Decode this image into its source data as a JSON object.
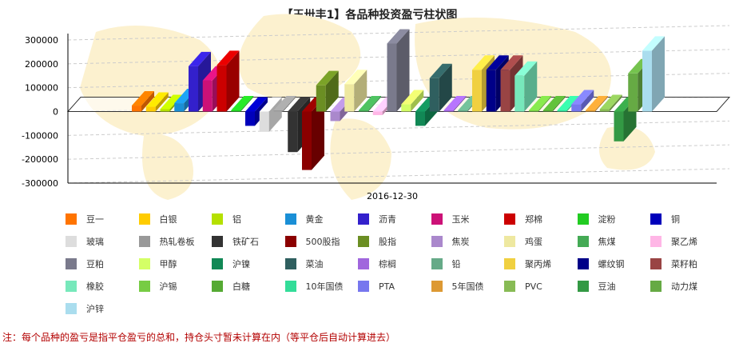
{
  "title": "【王卅丰1】各品种投资盈亏柱状图",
  "footnote": "注：每个品种的盈亏是指平仓盈亏的总和，持仓头寸暂未计算在内（等平仓后自动计算进去）",
  "chart_data": {
    "type": "bar",
    "title": "【王卅丰1】各品种投资盈亏柱状图",
    "categories": [
      "2016-12-30"
    ],
    "ylim": [
      -300000,
      300000
    ],
    "yticks": [
      300000,
      200000,
      100000,
      0,
      -100000,
      -200000,
      -300000
    ],
    "grid": true,
    "legend_position": "bottom",
    "series": [
      {
        "name": "豆一",
        "value": 25000,
        "color": "#ff7400"
      },
      {
        "name": "白银",
        "value": 20000,
        "color": "#ffcc00"
      },
      {
        "name": "铝",
        "value": 10000,
        "color": "#b5e000"
      },
      {
        "name": "黄金",
        "value": 35000,
        "color": "#1a8fd6"
      },
      {
        "name": "沥青",
        "value": 190000,
        "color": "#3320cc"
      },
      {
        "name": "玉米",
        "value": 130000,
        "color": "#cc1177"
      },
      {
        "name": "郑棉",
        "value": 195000,
        "color": "#cc0000"
      },
      {
        "name": "淀粉",
        "value": 5000,
        "color": "#22cc22"
      },
      {
        "name": "铜",
        "value": -60000,
        "color": "#0000bb"
      },
      {
        "name": "玻璃",
        "value": -85000,
        "color": "#dddddd"
      },
      {
        "name": "热轧卷板",
        "value": 5000,
        "color": "#999999"
      },
      {
        "name": "铁矿石",
        "value": -170000,
        "color": "#333333"
      },
      {
        "name": "500股指",
        "value": -245000,
        "color": "#8b0000"
      },
      {
        "name": "股指",
        "value": 110000,
        "color": "#6b8e23"
      },
      {
        "name": "焦炭",
        "value": -40000,
        "color": "#aa88cc"
      },
      {
        "name": "鸡蛋",
        "value": 115000,
        "color": "#eee8a0"
      },
      {
        "name": "焦煤",
        "value": 5000,
        "color": "#44aa55"
      },
      {
        "name": "聚乙烯",
        "value": -15000,
        "color": "#ffb6e6"
      },
      {
        "name": "豆粕",
        "value": 285000,
        "color": "#7a7a8c"
      },
      {
        "name": "甲醇",
        "value": 30000,
        "color": "#d4ff66"
      },
      {
        "name": "沪镍",
        "value": -60000,
        "color": "#118855"
      },
      {
        "name": "菜油",
        "value": 140000,
        "color": "#2f5f5f"
      },
      {
        "name": "棕榈",
        "value": 5000,
        "color": "#a066dd"
      },
      {
        "name": "铅",
        "value": 5000,
        "color": "#66aa88"
      },
      {
        "name": "聚丙烯",
        "value": 175000,
        "color": "#f0d040"
      },
      {
        "name": "螺纹钢",
        "value": 175000,
        "color": "#000088"
      },
      {
        "name": "菜籽粕",
        "value": 175000,
        "color": "#994444"
      },
      {
        "name": "橡胶",
        "value": 150000,
        "color": "#77e8bb"
      },
      {
        "name": "沪锡",
        "value": 5000,
        "color": "#77cc44"
      },
      {
        "name": "白糖",
        "value": 5000,
        "color": "#55aa33"
      },
      {
        "name": "10年国债",
        "value": 5000,
        "color": "#33dd99"
      },
      {
        "name": "PTA",
        "value": 30000,
        "color": "#7777ee"
      },
      {
        "name": "5年国债",
        "value": 5000,
        "color": "#dd9933"
      },
      {
        "name": "PVC",
        "value": 10000,
        "color": "#88bb55"
      },
      {
        "name": "豆油",
        "value": -125000,
        "color": "#339944"
      },
      {
        "name": "动力煤",
        "value": 160000,
        "color": "#66aa44"
      },
      {
        "name": "沪锌",
        "value": 255000,
        "color": "#aaddee"
      }
    ]
  }
}
